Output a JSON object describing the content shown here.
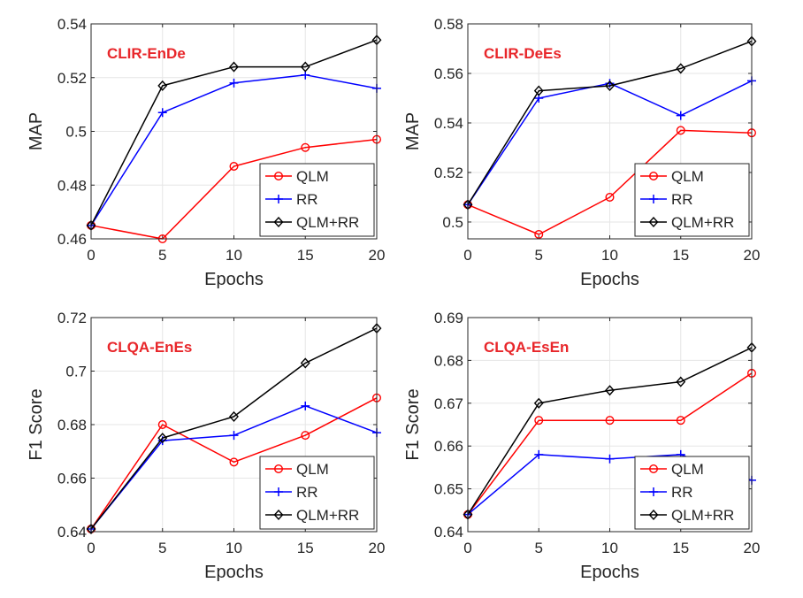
{
  "colors": {
    "QLM": "#ff0000",
    "RR": "#0000ff",
    "QLM+RR": "#000000",
    "title": "#e8262a",
    "grid": "#e6e6e6"
  },
  "chart_data": [
    {
      "type": "line",
      "title": "CLIR-EnDe",
      "xlabel": "Epochs",
      "ylabel": "MAP",
      "x": [
        0,
        5,
        10,
        15,
        20
      ],
      "xlim": [
        0,
        20
      ],
      "ylim": [
        0.46,
        0.54
      ],
      "xticks": [
        0,
        5,
        10,
        15,
        20
      ],
      "yticks": [
        0.46,
        0.48,
        0.5,
        0.52,
        0.54
      ],
      "ytick_labels": [
        "0.46",
        "0.48",
        "0.5",
        "0.52",
        "0.54"
      ],
      "grid": true,
      "legend_position": "bottom-right",
      "series": [
        {
          "name": "QLM",
          "marker": "circle",
          "values": [
            0.465,
            0.46,
            0.487,
            0.494,
            0.497
          ]
        },
        {
          "name": "RR",
          "marker": "plus",
          "values": [
            0.465,
            0.507,
            0.518,
            0.521,
            0.516
          ]
        },
        {
          "name": "QLM+RR",
          "marker": "diamond",
          "values": [
            0.465,
            0.517,
            0.524,
            0.524,
            0.534
          ]
        }
      ]
    },
    {
      "type": "line",
      "title": "CLIR-DeEs",
      "xlabel": "Epochs",
      "ylabel": "MAP",
      "x": [
        0,
        5,
        10,
        15,
        20
      ],
      "xlim": [
        0,
        20
      ],
      "ylim": [
        0.4932,
        0.58
      ],
      "xticks": [
        0,
        5,
        10,
        15,
        20
      ],
      "yticks": [
        0.5,
        0.52,
        0.54,
        0.56,
        0.58
      ],
      "ytick_labels": [
        "0.5",
        "0.52",
        "0.54",
        "0.56",
        "0.58"
      ],
      "grid": true,
      "legend_position": "bottom-right",
      "series": [
        {
          "name": "QLM",
          "marker": "circle",
          "values": [
            0.507,
            0.495,
            0.51,
            0.537,
            0.536
          ]
        },
        {
          "name": "RR",
          "marker": "plus",
          "values": [
            0.507,
            0.55,
            0.556,
            0.543,
            0.557
          ]
        },
        {
          "name": "QLM+RR",
          "marker": "diamond",
          "values": [
            0.507,
            0.553,
            0.555,
            0.562,
            0.573
          ]
        }
      ]
    },
    {
      "type": "line",
      "title": "CLQA-EnEs",
      "xlabel": "Epochs",
      "ylabel": "F1 Score",
      "x": [
        0,
        5,
        10,
        15,
        20
      ],
      "xlim": [
        0,
        20
      ],
      "ylim": [
        0.64,
        0.72
      ],
      "xticks": [
        0,
        5,
        10,
        15,
        20
      ],
      "yticks": [
        0.64,
        0.66,
        0.68,
        0.7,
        0.72
      ],
      "ytick_labels": [
        "0.64",
        "0.66",
        "0.68",
        "0.7",
        "0.72"
      ],
      "grid": true,
      "legend_position": "bottom-right",
      "series": [
        {
          "name": "QLM",
          "marker": "circle",
          "values": [
            0.641,
            0.68,
            0.666,
            0.676,
            0.69
          ]
        },
        {
          "name": "RR",
          "marker": "plus",
          "values": [
            0.641,
            0.674,
            0.676,
            0.687,
            0.677
          ]
        },
        {
          "name": "QLM+RR",
          "marker": "diamond",
          "values": [
            0.641,
            0.675,
            0.683,
            0.703,
            0.716
          ]
        }
      ]
    },
    {
      "type": "line",
      "title": "CLQA-EsEn",
      "xlabel": "Epochs",
      "ylabel": "F1 Score",
      "x": [
        0,
        5,
        10,
        15,
        20
      ],
      "xlim": [
        0,
        20
      ],
      "ylim": [
        0.64,
        0.69
      ],
      "xticks": [
        0,
        5,
        10,
        15,
        20
      ],
      "yticks": [
        0.64,
        0.65,
        0.66,
        0.67,
        0.68,
        0.69
      ],
      "ytick_labels": [
        "0.64",
        "0.65",
        "0.66",
        "0.67",
        "0.68",
        "0.69"
      ],
      "grid": true,
      "legend_position": "bottom-right",
      "series": [
        {
          "name": "QLM",
          "marker": "circle",
          "values": [
            0.644,
            0.666,
            0.666,
            0.666,
            0.677
          ]
        },
        {
          "name": "RR",
          "marker": "plus",
          "values": [
            0.644,
            0.658,
            0.657,
            0.658,
            0.652
          ]
        },
        {
          "name": "QLM+RR",
          "marker": "diamond",
          "values": [
            0.644,
            0.67,
            0.673,
            0.675,
            0.683
          ]
        }
      ]
    }
  ]
}
